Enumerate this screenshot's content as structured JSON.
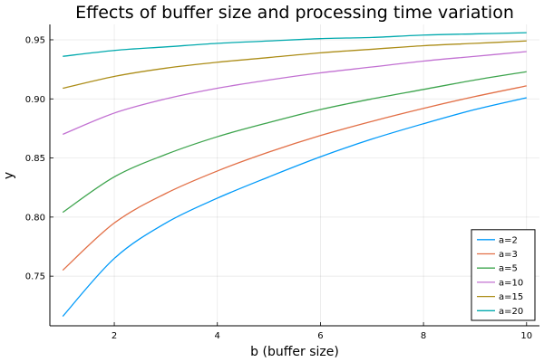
{
  "chart_data": {
    "type": "line",
    "title": "Effects of buffer size and processing time variation",
    "xlabel": "b (buffer size)",
    "ylabel": "y",
    "xlim": [
      0.75,
      10.25
    ],
    "ylim": [
      0.708,
      0.963
    ],
    "xticks": [
      2,
      4,
      6,
      8,
      10
    ],
    "yticks": [
      0.75,
      0.8,
      0.85,
      0.9,
      0.95
    ],
    "xtick_labels": [
      "2",
      "4",
      "6",
      "8",
      "10"
    ],
    "ytick_labels": [
      "0.75",
      "0.80",
      "0.85",
      "0.90",
      "0.95"
    ],
    "grid": true,
    "legend_position": "bottom-right",
    "x": [
      1,
      2,
      3,
      4,
      5,
      6,
      7,
      8,
      9,
      10
    ],
    "series": [
      {
        "name": "a=2",
        "color": "#009af9",
        "values": [
          0.716,
          0.765,
          0.795,
          0.816,
          0.834,
          0.851,
          0.866,
          0.879,
          0.891,
          0.901
        ]
      },
      {
        "name": "a=3",
        "color": "#e26f46",
        "values": [
          0.755,
          0.795,
          0.82,
          0.839,
          0.855,
          0.869,
          0.881,
          0.892,
          0.902,
          0.911
        ]
      },
      {
        "name": "a=5",
        "color": "#3da44d",
        "values": [
          0.804,
          0.834,
          0.853,
          0.868,
          0.88,
          0.891,
          0.9,
          0.908,
          0.916,
          0.923
        ]
      },
      {
        "name": "a=10",
        "color": "#c271d2",
        "values": [
          0.87,
          0.888,
          0.9,
          0.909,
          0.916,
          0.922,
          0.927,
          0.932,
          0.936,
          0.94
        ]
      },
      {
        "name": "a=15",
        "color": "#ac8d18",
        "values": [
          0.909,
          0.919,
          0.926,
          0.931,
          0.935,
          0.939,
          0.942,
          0.945,
          0.947,
          0.949
        ]
      },
      {
        "name": "a=20",
        "color": "#00a9ad",
        "values": [
          0.936,
          0.941,
          0.944,
          0.947,
          0.949,
          0.951,
          0.952,
          0.954,
          0.955,
          0.956
        ]
      }
    ]
  }
}
